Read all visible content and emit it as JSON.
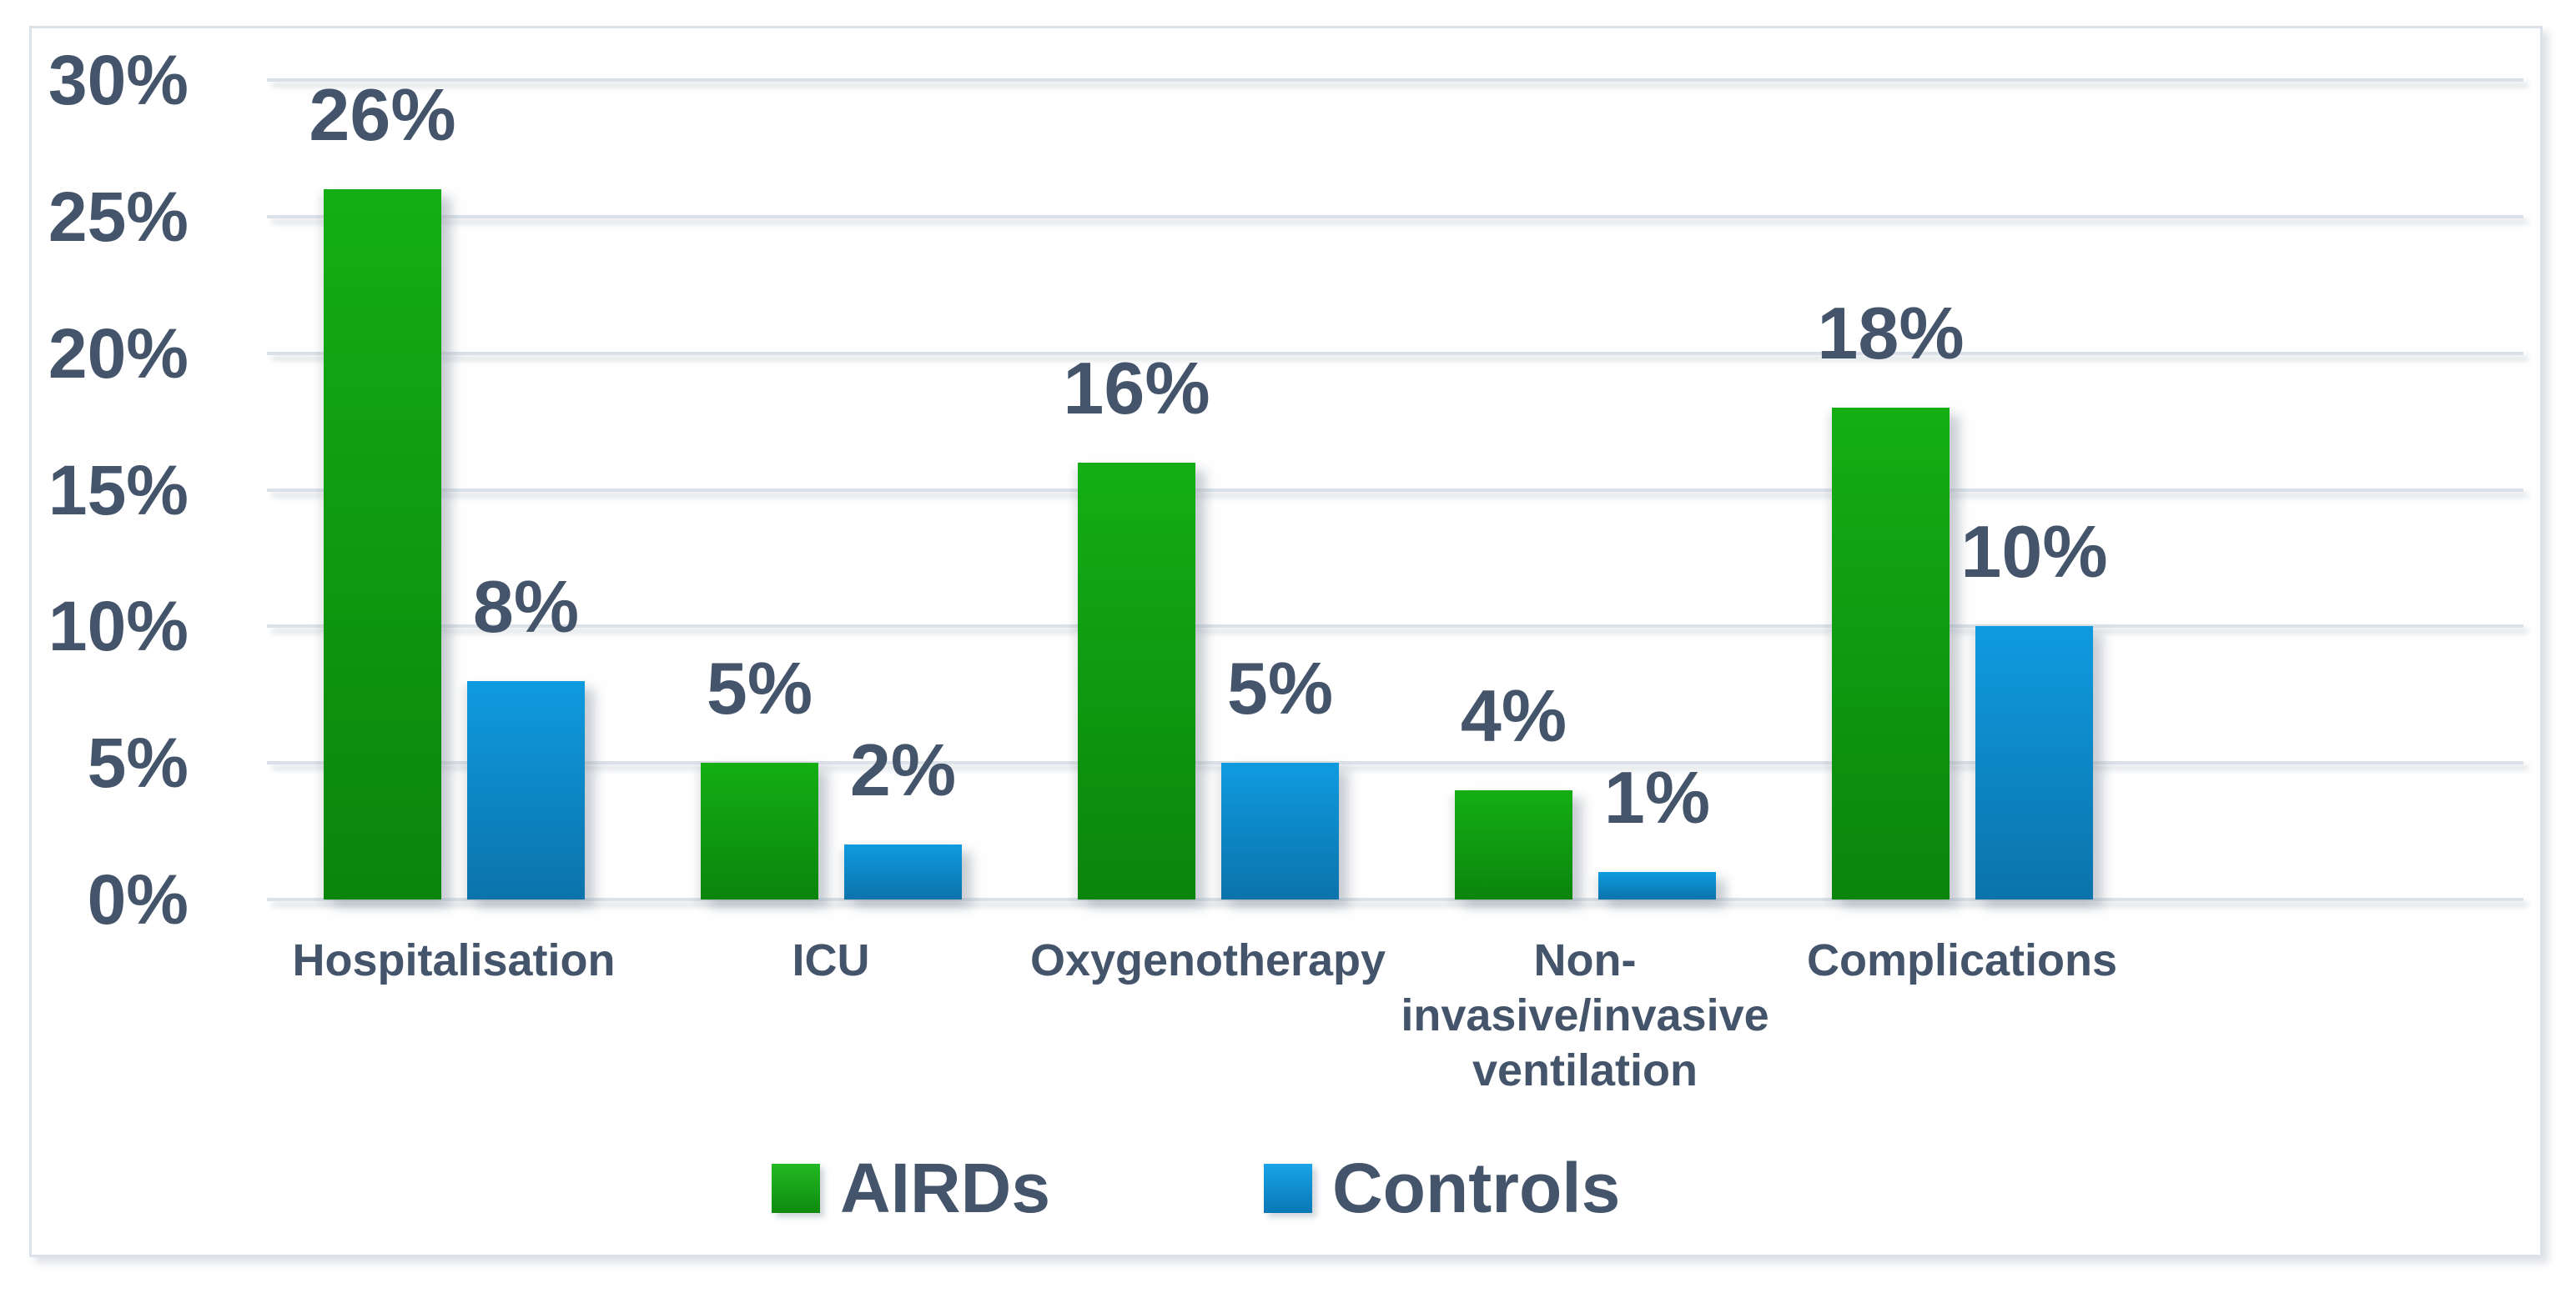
{
  "chart_data": {
    "type": "bar",
    "title": "",
    "categories": [
      "Hospitalisation",
      "ICU",
      "Oxygenotherapy",
      "Non-invasive/invasive ventilation",
      "Complications"
    ],
    "category_label_lines": [
      [
        "Hospitalisation"
      ],
      [
        "ICU"
      ],
      [
        "Oxygenotherapy"
      ],
      [
        "Non-",
        "invasive/invasive",
        "ventilation"
      ],
      [
        "Complications"
      ]
    ],
    "series": [
      {
        "name": "AIRDs",
        "values": [
          26,
          5,
          16,
          4,
          18
        ],
        "data_labels": [
          "26%",
          "5%",
          "16%",
          "4%",
          "18%"
        ],
        "color_top": "#14AE14",
        "color_bottom": "#0A850C"
      },
      {
        "name": "Controls",
        "values": [
          8,
          2,
          5,
          1,
          10
        ],
        "data_labels": [
          "8%",
          "2%",
          "5%",
          "1%",
          "10%"
        ],
        "color_top": "#0F9BE0",
        "color_bottom": "#0B73AB"
      }
    ],
    "y_axis": {
      "tick_labels_top_to_bottom": [
        "30%",
        "25%",
        "20%",
        "15%",
        "10%",
        "5%",
        "0%"
      ],
      "min": 0,
      "max": 30,
      "step": 5,
      "unit": "%"
    },
    "grid": true,
    "legend": {
      "position": "bottom",
      "entries": [
        "AIRDs",
        "Controls"
      ]
    }
  },
  "colors": {
    "text": "#44546A",
    "gridline": "#DAE1E8",
    "frame_border": "#DCE2E9",
    "background": "#FFFFFF",
    "airds_green": "#14AE14",
    "controls_blue": "#0F9BE0"
  }
}
